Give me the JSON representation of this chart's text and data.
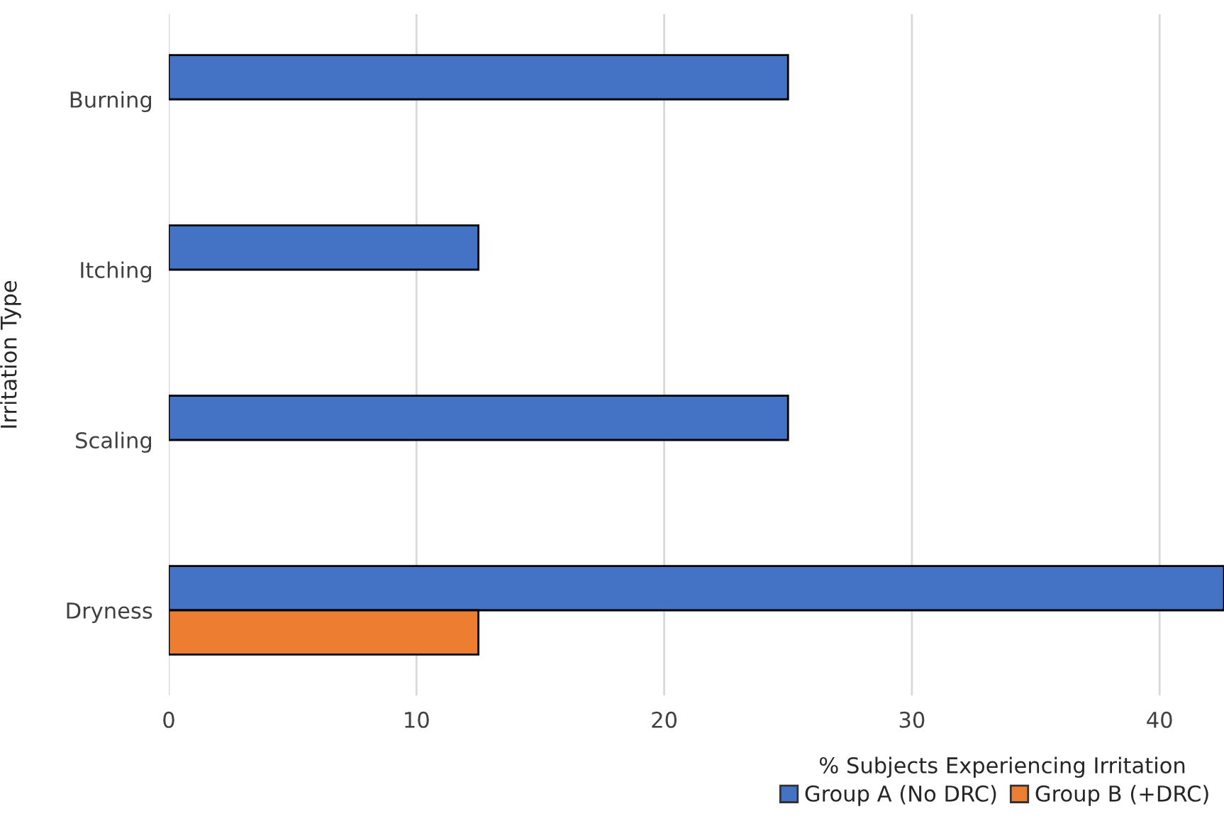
{
  "chart_data": {
    "type": "bar",
    "orientation": "horizontal",
    "ylabel": "Irritation Type",
    "xlabel": "% Subjects Experiencing Irritation",
    "categories": [
      "Burning",
      "Itching",
      "Scaling",
      "Dryness"
    ],
    "series": [
      {
        "name": "Group A (No DRC)",
        "color": "#4472c4",
        "values": [
          25,
          12.5,
          25,
          42.6
        ]
      },
      {
        "name": "Group B (+DRC)",
        "color": "#ed7d31",
        "values": [
          null,
          null,
          null,
          12.5
        ]
      }
    ],
    "xlim": [
      0,
      42.6
    ],
    "xticks": [
      0,
      10,
      20,
      30,
      40
    ],
    "grid": "x",
    "legend": "bottom right"
  }
}
